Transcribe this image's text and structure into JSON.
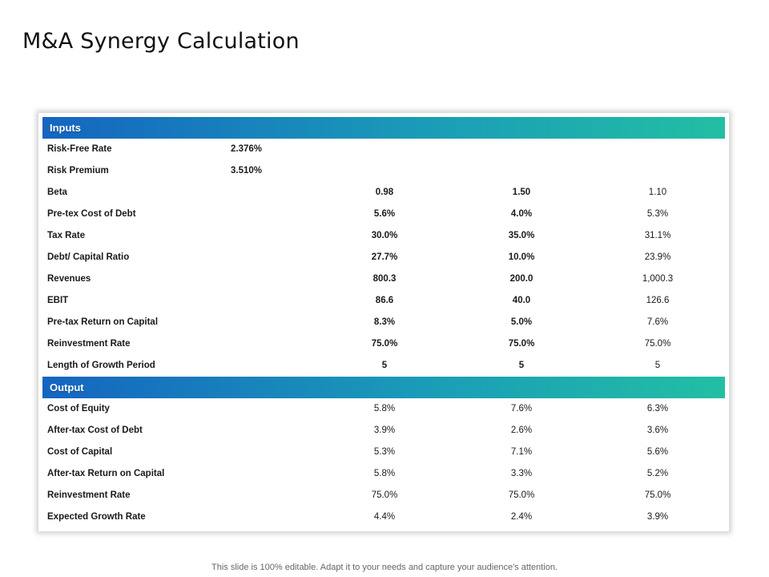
{
  "title": "M&A Synergy Calculation",
  "inputs": {
    "header": "Inputs",
    "rows": [
      {
        "label": "Risk-Free Rate",
        "v0": "2.376%",
        "c1": "",
        "c2": "",
        "c3": ""
      },
      {
        "label": "Risk Premium",
        "v0": "3.510%",
        "c1": "",
        "c2": "",
        "c3": ""
      },
      {
        "label": "Beta",
        "v0": "",
        "c1": "0.98",
        "c2": "1.50",
        "c3": "1.10"
      },
      {
        "label": "Pre-tex Cost of Debt",
        "v0": "",
        "c1": "5.6%",
        "c2": "4.0%",
        "c3": "5.3%"
      },
      {
        "label": "Tax Rate",
        "v0": "",
        "c1": "30.0%",
        "c2": "35.0%",
        "c3": "31.1%"
      },
      {
        "label": "Debt/ Capital Ratio",
        "v0": "",
        "c1": "27.7%",
        "c2": "10.0%",
        "c3": "23.9%"
      },
      {
        "label": "Revenues",
        "v0": "",
        "c1": "800.3",
        "c2": "200.0",
        "c3": "1,000.3"
      },
      {
        "label": "EBIT",
        "v0": "",
        "c1": "86.6",
        "c2": "40.0",
        "c3": "126.6"
      },
      {
        "label": "Pre-tax Return on Capital",
        "v0": "",
        "c1": "8.3%",
        "c2": "5.0%",
        "c3": "7.6%"
      },
      {
        "label": "Reinvestment Rate",
        "v0": "",
        "c1": "75.0%",
        "c2": "75.0%",
        "c3": "75.0%"
      },
      {
        "label": "Length of Growth Period",
        "v0": "",
        "c1": "5",
        "c2": "5",
        "c3": "5"
      }
    ]
  },
  "output": {
    "header": "Output",
    "rows": [
      {
        "label": "Cost of Equity",
        "c1": "5.8%",
        "c2": "7.6%",
        "c3": "6.3%"
      },
      {
        "label": "After-tax Cost of Debt",
        "c1": "3.9%",
        "c2": "2.6%",
        "c3": "3.6%"
      },
      {
        "label": "Cost of Capital",
        "c1": "5.3%",
        "c2": "7.1%",
        "c3": "5.6%"
      },
      {
        "label": "After-tax Return on Capital",
        "c1": "5.8%",
        "c2": "3.3%",
        "c3": "5.2%"
      },
      {
        "label": "Reinvestment Rate",
        "c1": "75.0%",
        "c2": "75.0%",
        "c3": "75.0%"
      },
      {
        "label": "Expected Growth Rate",
        "c1": "4.4%",
        "c2": "2.4%",
        "c3": "3.9%"
      }
    ]
  },
  "footer": "This slide is 100% editable. Adapt it to your needs and capture your audience's attention."
}
